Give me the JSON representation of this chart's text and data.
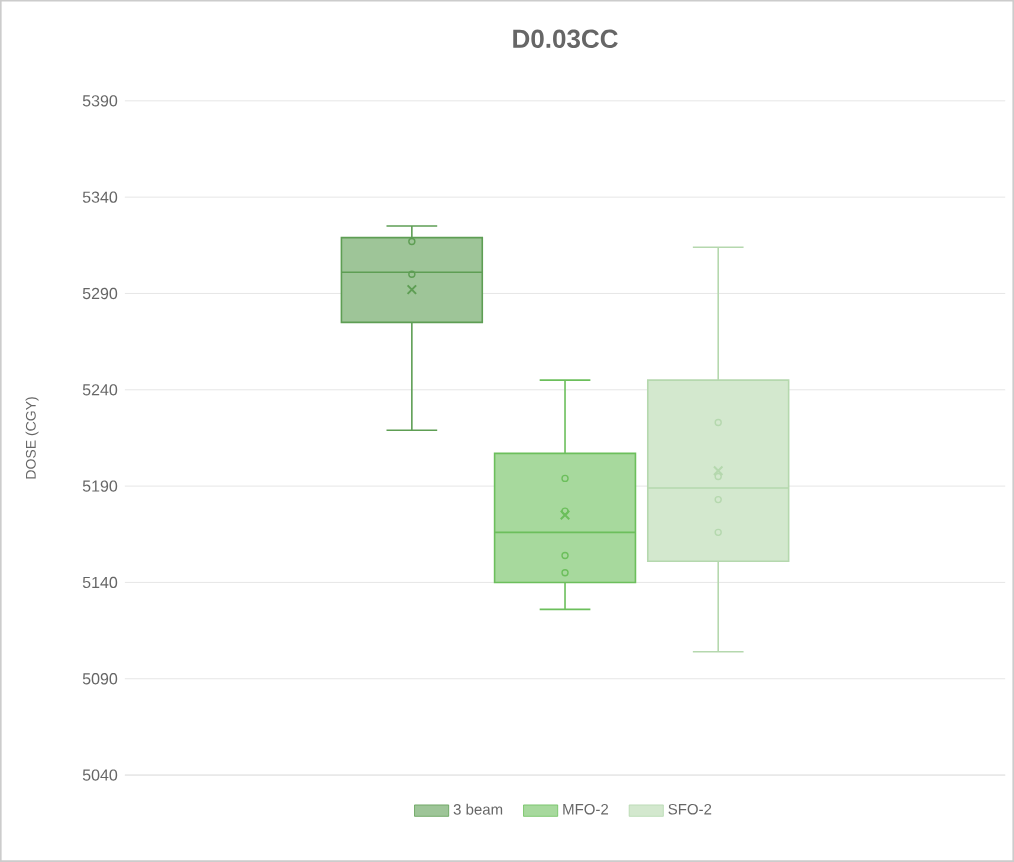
{
  "chart_data": {
    "type": "box",
    "title": "D0.03CC",
    "ylabel": "DOSE (CGY)",
    "categories": [
      null
    ],
    "ylim": [
      5040,
      5390
    ],
    "yticks": [
      5040,
      5090,
      5140,
      5190,
      5240,
      5290,
      5340,
      5390
    ],
    "grid": "y",
    "legend": "bottom",
    "marker": "circle",
    "series": [
      {
        "name": "3 beam",
        "color": "#5e9e54",
        "boxes": [
          {
            "low": 5219,
            "q1": 5275,
            "median": 5301,
            "q3": 5319,
            "high": 5325,
            "mean": 5292
          }
        ]
      },
      {
        "name": "MFO-2",
        "color": "#6cbf5c",
        "boxes": [
          {
            "low": 5126,
            "q1": 5140,
            "median": 5166,
            "q3": 5207,
            "high": 5245,
            "mean": 5175
          }
        ]
      },
      {
        "name": "SFO-2",
        "color": "#b5d8ae",
        "boxes": [
          {
            "low": 5104,
            "q1": 5151,
            "median": 5189,
            "q3": 5245,
            "high": 5314,
            "mean": 5198
          }
        ]
      },
      {
        "type": "scatter",
        "color": "#5e9e54",
        "x": [
          null,
          null
        ],
        "values": [
          5317,
          5300
        ]
      },
      {
        "type": "scatter",
        "color": "#6cbf5c",
        "x": [
          null,
          null,
          null,
          null
        ],
        "values": [
          5194,
          5177,
          5154,
          5145
        ]
      },
      {
        "type": "scatter",
        "color": "#b5d8ae",
        "x": [
          null,
          null,
          null,
          null
        ],
        "values": [
          5223,
          5195,
          5183,
          5166
        ]
      }
    ]
  }
}
